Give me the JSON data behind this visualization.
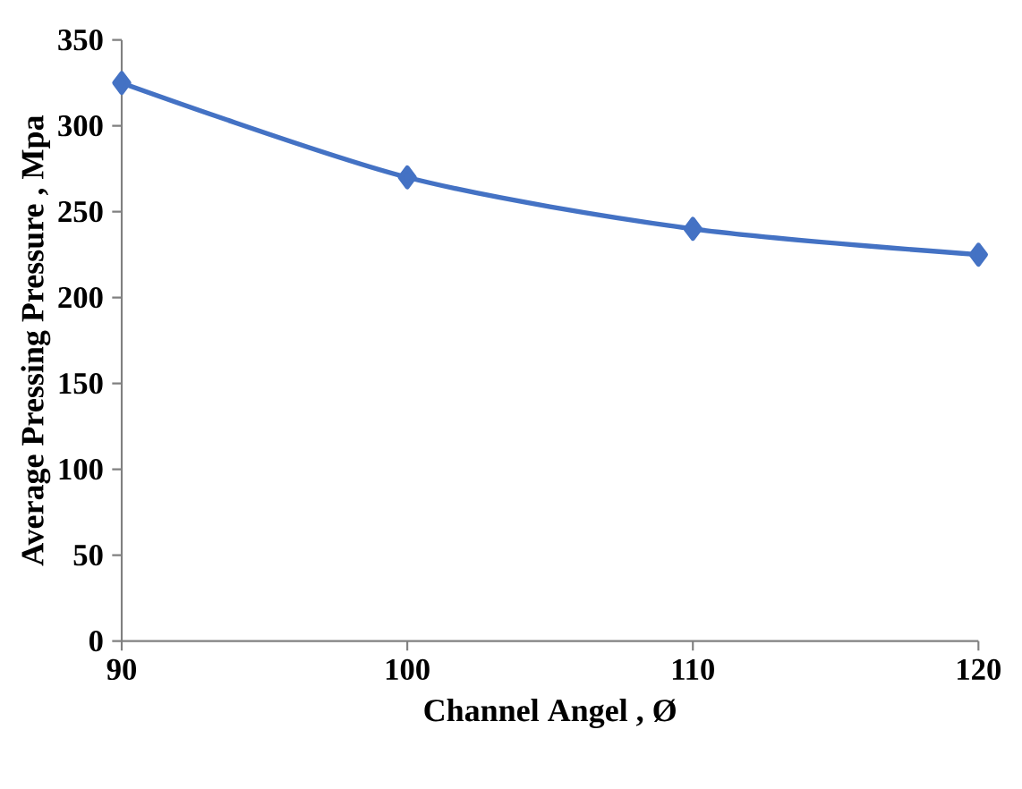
{
  "chart_data": {
    "type": "line",
    "xlabel": "Channel Angel , Ø",
    "ylabel": "Average Pressing Pressure  , Mpa",
    "x": [
      90,
      100,
      110,
      120
    ],
    "series": [
      {
        "color": "#4472c4",
        "values": [
          325,
          270,
          240,
          225
        ]
      }
    ],
    "xlim": [
      90,
      120
    ],
    "xticks": [
      90,
      100,
      110,
      120
    ],
    "ylim": [
      0,
      350
    ],
    "yticks": [
      0,
      50,
      100,
      150,
      200,
      250,
      300,
      350
    ],
    "marker": "diamond",
    "line_style": "solid",
    "grid": false
  }
}
